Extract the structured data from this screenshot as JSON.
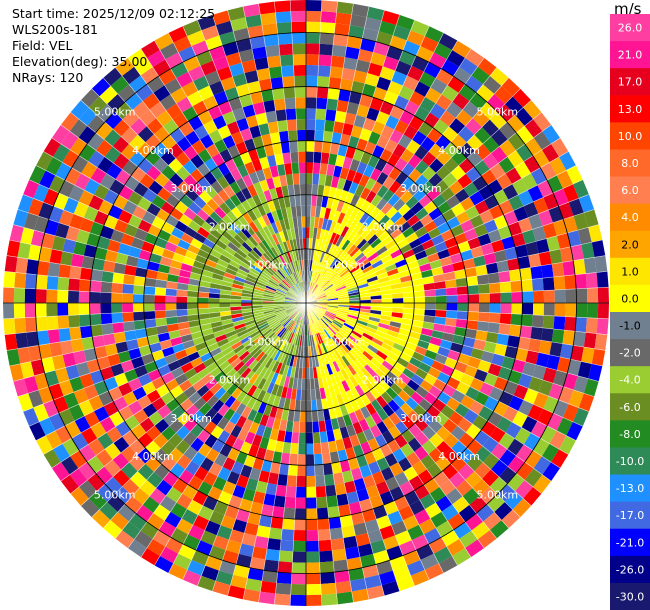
{
  "header": {
    "start_time": "Start time: 2025/12/09 02:12:25",
    "instrument": "WLS200s-181",
    "field": "Field: VEL",
    "elevation": "Elevation(deg): 35.00",
    "nrays": "NRays: 120"
  },
  "chart_data": {
    "type": "heatmap",
    "projection": "polar (PPI)",
    "field": "VEL",
    "units": "m/s",
    "elevation_deg": 35.0,
    "n_rays": 120,
    "range_rings_km": [
      {
        "label": "1.00km",
        "value": 1.0
      },
      {
        "label": "2.00km",
        "value": 2.0
      },
      {
        "label": "3.00km",
        "value": 3.0
      },
      {
        "label": "4.00km",
        "value": 4.0
      },
      {
        "label": "5.00km",
        "value": 5.0
      }
    ],
    "max_range_km": 5.6,
    "colorbar": {
      "title": "m/s",
      "ticks": [
        "26.0",
        "21.0",
        "17.0",
        "13.0",
        "10.0",
        "8.0",
        "6.0",
        "4.0",
        "2.0",
        "1.0",
        "0.0",
        "-1.0",
        "-2.0",
        "-4.0",
        "-6.0",
        "-8.0",
        "-10.0",
        "-13.0",
        "-17.0",
        "-21.0",
        "-26.0",
        "-30.0"
      ],
      "colors": [
        "#ff3ea1",
        "#ff1493",
        "#e6001e",
        "#ff0000",
        "#ff4500",
        "#ff6a2a",
        "#ff7f50",
        "#ff8c00",
        "#ffa500",
        "#ffe600",
        "#ffff00",
        "#708090",
        "#696969",
        "#9acd32",
        "#6b8e23",
        "#228b22",
        "#2e8b57",
        "#1e90ff",
        "#4169e1",
        "#0000ff",
        "#00008b",
        "#191970"
      ]
    },
    "pattern": {
      "near_field": "mostly positive (yellow) to the east and negative (green) to the west",
      "far_field": "noisy, high-velocity speckle across full colour range"
    }
  }
}
